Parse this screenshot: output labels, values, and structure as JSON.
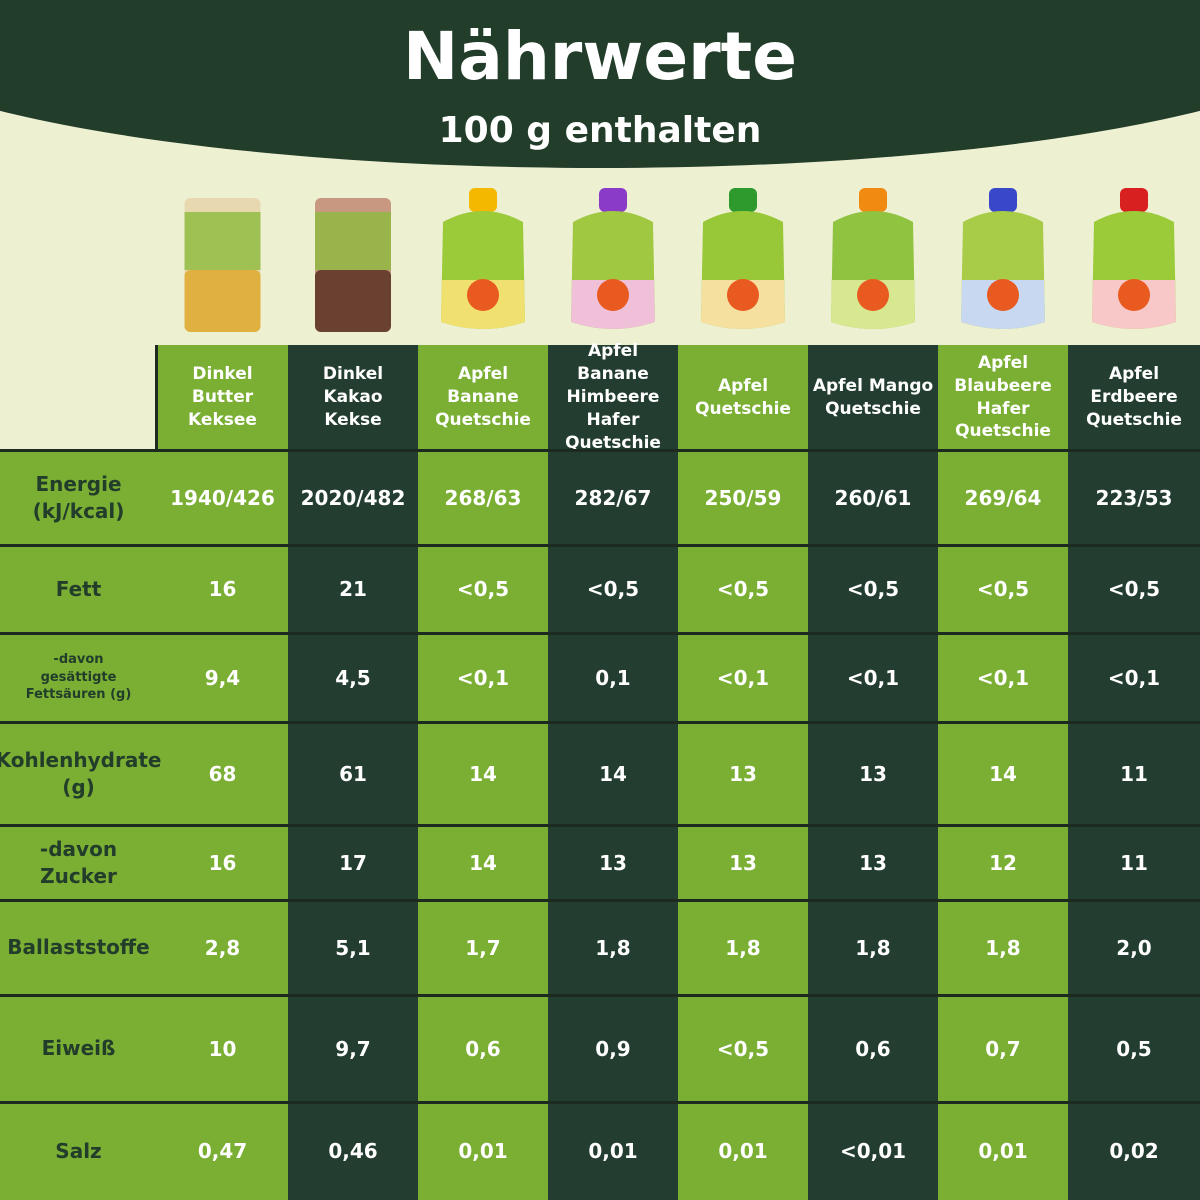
{
  "header": {
    "title": "Nährwerte",
    "subtitle": "100 g enthalten"
  },
  "table": {
    "columns": [
      "Dinkel Butter Keksee",
      "Dinkel Kakao Kekse",
      "Apfel Banane Quetschie",
      "Apfel Banane Himbeere Hafer Quetschie",
      "Apfel Quetschie",
      "Apfel Mango Quetschie",
      "Apfel Blaubeere Hafer Quetschie",
      "Apfel Erdbeere Quetschie"
    ],
    "rows": [
      {
        "label": "Energie\n(kJ/kcal)",
        "values": [
          "1940/426",
          "2020/482",
          "268/63",
          "282/67",
          "250/59",
          "260/61",
          "269/64",
          "223/53"
        ]
      },
      {
        "label": "Fett",
        "values": [
          "16",
          "21",
          "<0,5",
          "<0,5",
          "<0,5",
          "<0,5",
          "<0,5",
          "<0,5"
        ]
      },
      {
        "label": "-davon\ngesättigte\nFettsäuren (g)",
        "values": [
          "9,4",
          "4,5",
          "<0,1",
          "0,1",
          "<0,1",
          "<0,1",
          "<0,1",
          "<0,1"
        ]
      },
      {
        "label": "Kohlenhydrate\n(g)",
        "values": [
          "68",
          "61",
          "14",
          "14",
          "13",
          "13",
          "14",
          "11"
        ]
      },
      {
        "label": "-davon\nZucker",
        "values": [
          "16",
          "17",
          "14",
          "13",
          "13",
          "13",
          "12",
          "11"
        ]
      },
      {
        "label": "Ballaststoffe",
        "values": [
          "2,8",
          "5,1",
          "1,7",
          "1,8",
          "1,8",
          "1,8",
          "1,8",
          "2,0"
        ]
      },
      {
        "label": "Eiweiß",
        "values": [
          "10",
          "9,7",
          "0,6",
          "0,9",
          "<0,5",
          "0,6",
          "0,7",
          "0,5"
        ]
      },
      {
        "label": "Salz",
        "values": [
          "0,47",
          "0,46",
          "0,01",
          "0,01",
          "0,01",
          "<0,01",
          "0,01",
          "0,02"
        ]
      }
    ]
  }
}
